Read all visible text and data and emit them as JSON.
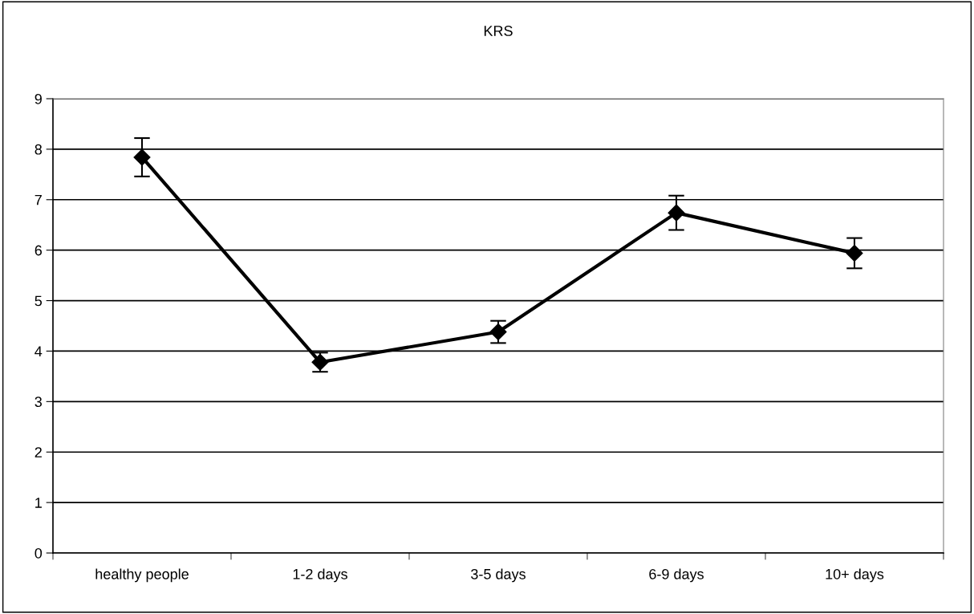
{
  "chart_data": {
    "type": "line",
    "title": "KRS",
    "categories": [
      "healthy people",
      "1-2 days",
      "3-5 days",
      "6-9 days",
      "10+ days"
    ],
    "series": [
      {
        "color": "#000000",
        "values": [
          7.84,
          3.78,
          4.38,
          6.74,
          5.94
        ],
        "errors": [
          0.38,
          0.19,
          0.22,
          0.34,
          0.3
        ]
      }
    ],
    "ylim": [
      0,
      9
    ],
    "yticks": [
      0,
      1,
      2,
      3,
      4,
      5,
      6,
      7,
      8,
      9
    ],
    "grid": "y",
    "marker": "diamond",
    "line_style": "solid"
  }
}
